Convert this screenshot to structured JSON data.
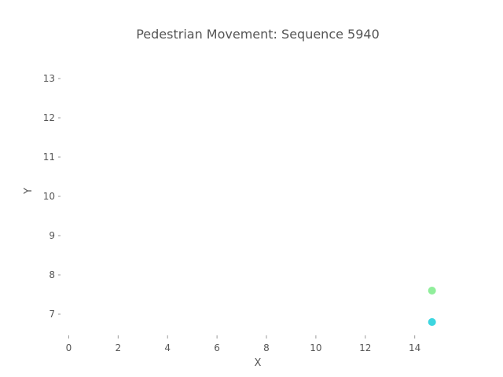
{
  "chart_data": {
    "type": "scatter",
    "title": "Pedestrian Movement: Sequence 5940",
    "xlabel": "X",
    "ylabel": "Y",
    "xlim": [
      -0.3,
      15.6
    ],
    "ylim": [
      6.5,
      13.8
    ],
    "xticks": [
      "0",
      "2",
      "4",
      "6",
      "8",
      "10",
      "12",
      "14"
    ],
    "yticks": [
      "7",
      "8",
      "9",
      "10",
      "11",
      "12",
      "13"
    ],
    "grid": false,
    "points": [
      {
        "x": 14.7,
        "y": 7.6,
        "color": "#90ee9b"
      },
      {
        "x": 14.7,
        "y": 6.8,
        "color": "#3dd6e0"
      }
    ]
  }
}
